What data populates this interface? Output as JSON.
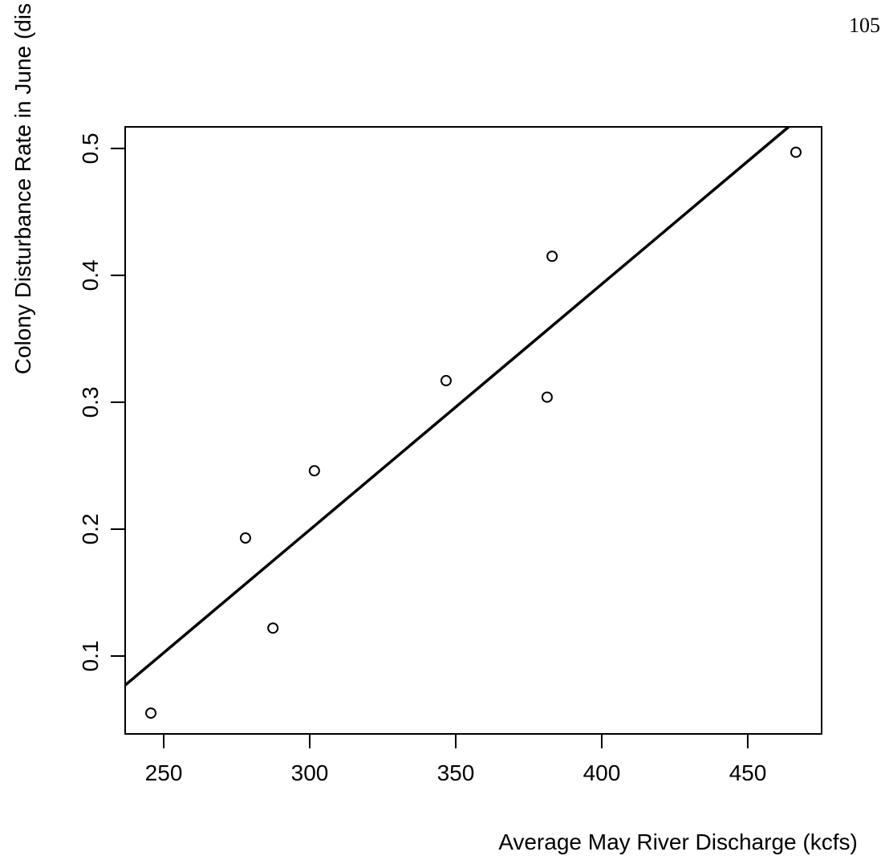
{
  "page_number": "105",
  "chart_data": {
    "type": "scatter",
    "xlabel": "Average May River Discharge (kcfs)",
    "ylabel": "Colony Disturbance Rate in June (dis",
    "x": [
      245.6,
      278.0,
      287.4,
      301.6,
      346.7,
      381.3,
      383.0,
      466.5
    ],
    "values": [
      0.055,
      0.193,
      0.122,
      0.246,
      0.317,
      0.304,
      0.415,
      0.497
    ],
    "fit": {
      "x": [
        236.8,
        464.0
      ],
      "y": [
        0.077,
        0.517
      ]
    },
    "color": "#000000",
    "xlim": [
      236.8,
      475.3
    ],
    "ylim": [
      0.0386,
      0.517
    ],
    "xticks": [
      250,
      300,
      350,
      400,
      450
    ],
    "yticks": [
      0.1,
      0.2,
      0.3,
      0.4,
      0.5
    ]
  }
}
